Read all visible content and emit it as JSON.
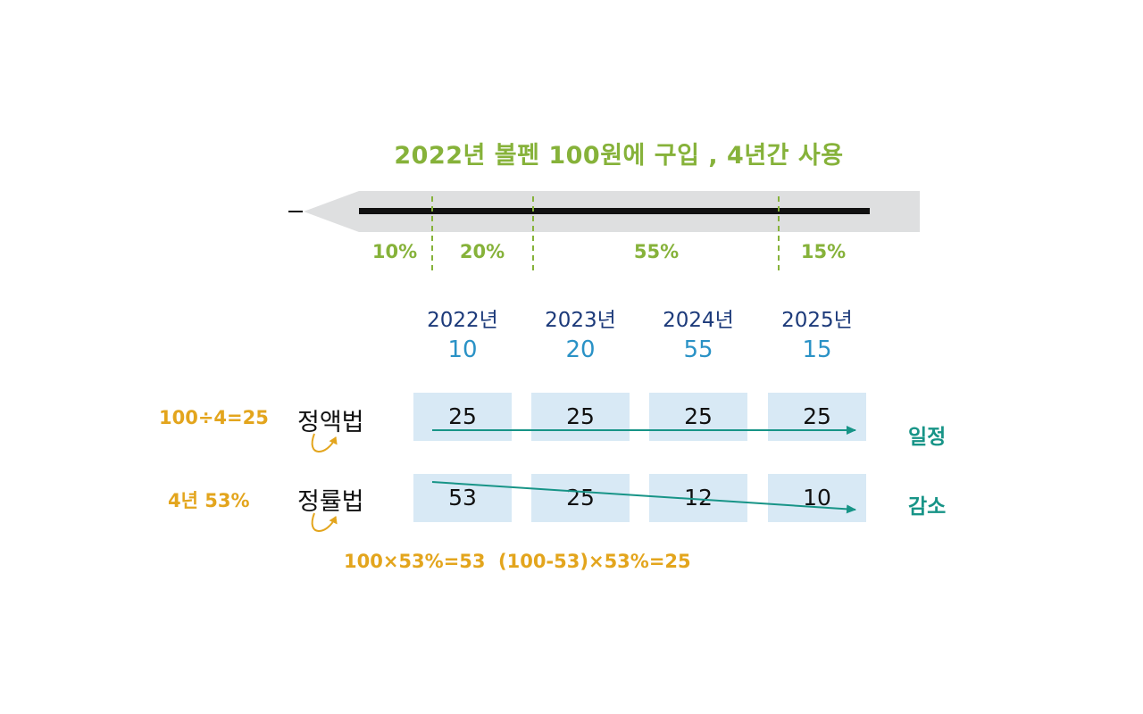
{
  "title": "2022년 볼펜 100원에 구입 , 4년간 사용",
  "pen": {
    "segments": [
      {
        "label": "10%"
      },
      {
        "label": "20%"
      },
      {
        "label": "55%"
      },
      {
        "label": "15%"
      }
    ]
  },
  "years": [
    {
      "year": "2022년",
      "usage": "10"
    },
    {
      "year": "2023년",
      "usage": "20"
    },
    {
      "year": "2024년",
      "usage": "55"
    },
    {
      "year": "2025년",
      "usage": "15"
    }
  ],
  "methods": [
    {
      "name": "정액법",
      "formula": "100÷4=25",
      "values": [
        "25",
        "25",
        "25",
        "25"
      ],
      "trend": "일정"
    },
    {
      "name": "정률법",
      "formula": "4년 53%",
      "values": [
        "53",
        "25",
        "12",
        "10"
      ],
      "trend": "감소"
    }
  ],
  "bottom_formulas": [
    "100×53%=53",
    "(100-53)×53%=25"
  ],
  "colors": {
    "green": "#86b23a",
    "navy": "#1c3a7a",
    "blue": "#2a92c6",
    "orange": "#e3a51d",
    "teal": "#179487",
    "cell": "#d8e9f5",
    "pen_body": "#dedfe0"
  }
}
